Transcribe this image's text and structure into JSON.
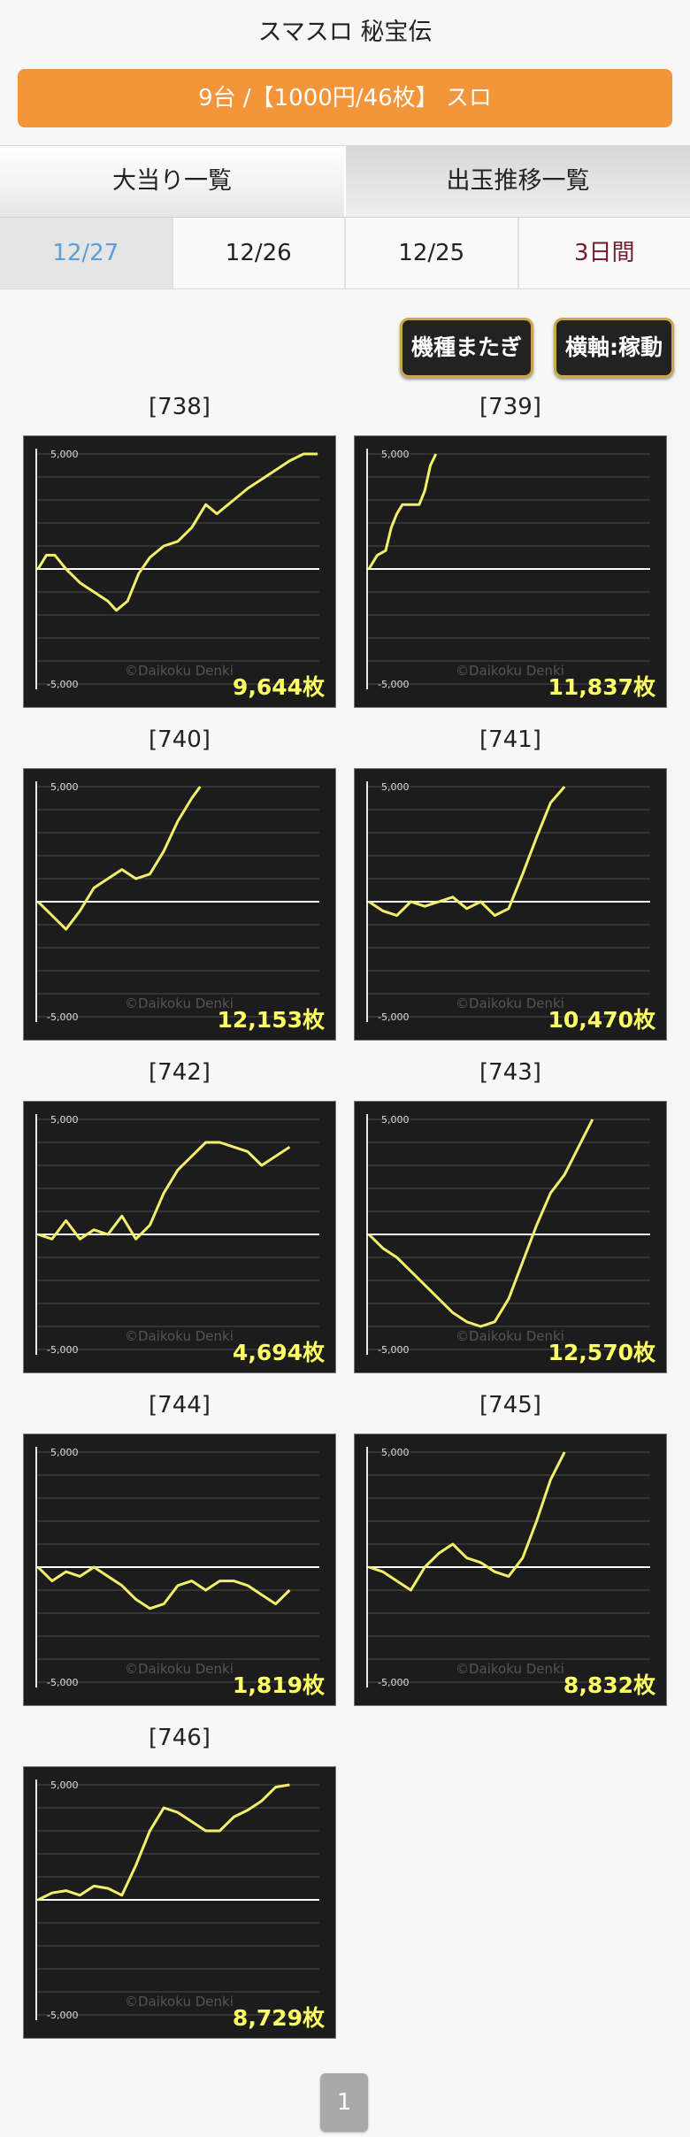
{
  "page": {
    "title": "スマスロ 秘宝伝",
    "machine_info": "9台 /【1000円/46枚】 スロ"
  },
  "main_tabs": [
    {
      "label": "大当り一覧",
      "active": false
    },
    {
      "label": "出玉推移一覧",
      "active": true
    }
  ],
  "date_tabs": [
    {
      "label": "12/27",
      "active": true
    },
    {
      "label": "12/26",
      "active": false
    },
    {
      "label": "12/25",
      "active": false
    },
    {
      "label": "3日間",
      "active": false
    }
  ],
  "options": {
    "machine_span": "機種またぎ",
    "x_axis": "横軸:稼動"
  },
  "chart_common": {
    "ytick_top": "5,000",
    "ytick_bottom": "-5,000",
    "watermark": "©Daikoku Denki",
    "ylim": [
      -5000,
      5000
    ]
  },
  "chart_data": [
    {
      "type": "line",
      "label": "[738]",
      "total": "9,644枚",
      "x": [
        0,
        3,
        6,
        10,
        15,
        20,
        25,
        28,
        32,
        36,
        40,
        45,
        50,
        55,
        60,
        64,
        70,
        75,
        80,
        85,
        90,
        95,
        100
      ],
      "y": [
        0,
        600,
        600,
        0,
        -600,
        -1000,
        -1400,
        -1800,
        -1400,
        -200,
        500,
        1000,
        1200,
        1800,
        2800,
        2400,
        3000,
        3500,
        3900,
        4300,
        4700,
        5000,
        5000
      ]
    },
    {
      "type": "line",
      "label": "[739]",
      "total": "11,837枚",
      "x": [
        0,
        3,
        6,
        8,
        10,
        12,
        15,
        18,
        20,
        22,
        24
      ],
      "y": [
        0,
        600,
        800,
        1800,
        2400,
        2800,
        2800,
        2800,
        3400,
        4500,
        5000
      ]
    },
    {
      "type": "line",
      "label": "[740]",
      "total": "12,153枚",
      "x": [
        0,
        5,
        10,
        15,
        20,
        25,
        30,
        35,
        40,
        45,
        50,
        55,
        58
      ],
      "y": [
        0,
        -600,
        -1200,
        -400,
        600,
        1000,
        1400,
        1000,
        1200,
        2200,
        3500,
        4500,
        5000
      ]
    },
    {
      "type": "line",
      "label": "[741]",
      "total": "10,470枚",
      "x": [
        0,
        5,
        10,
        15,
        20,
        25,
        30,
        35,
        40,
        45,
        50,
        55,
        60,
        65,
        70
      ],
      "y": [
        0,
        -400,
        -600,
        0,
        -200,
        0,
        200,
        -300,
        0,
        -600,
        -300,
        1200,
        2800,
        4300,
        5000
      ]
    },
    {
      "type": "line",
      "label": "[742]",
      "total": "4,694枚",
      "x": [
        0,
        5,
        10,
        15,
        20,
        25,
        30,
        35,
        40,
        45,
        50,
        55,
        60,
        65,
        70,
        75,
        80,
        85,
        90
      ],
      "y": [
        0,
        -200,
        600,
        -200,
        200,
        0,
        800,
        -200,
        400,
        1800,
        2800,
        3400,
        4000,
        4000,
        3800,
        3600,
        3000,
        3400,
        3800
      ]
    },
    {
      "type": "line",
      "label": "[743]",
      "total": "12,570枚",
      "x": [
        0,
        5,
        10,
        15,
        20,
        25,
        30,
        35,
        40,
        45,
        50,
        55,
        60,
        65,
        70,
        75,
        80
      ],
      "y": [
        0,
        -600,
        -1000,
        -1600,
        -2200,
        -2800,
        -3400,
        -3800,
        -4000,
        -3800,
        -2800,
        -1200,
        400,
        1800,
        2600,
        3800,
        5000
      ]
    },
    {
      "type": "line",
      "label": "[744]",
      "total": "1,819枚",
      "x": [
        0,
        5,
        10,
        15,
        20,
        25,
        30,
        35,
        40,
        45,
        50,
        55,
        60,
        65,
        70,
        75,
        80,
        85,
        90
      ],
      "y": [
        0,
        -600,
        -200,
        -400,
        0,
        -400,
        -800,
        -1400,
        -1800,
        -1600,
        -800,
        -600,
        -1000,
        -600,
        -600,
        -800,
        -1200,
        -1600,
        -1000
      ]
    },
    {
      "type": "line",
      "label": "[745]",
      "total": "8,832枚",
      "x": [
        0,
        5,
        10,
        15,
        20,
        25,
        30,
        35,
        40,
        45,
        50,
        55,
        60,
        65,
        70
      ],
      "y": [
        0,
        -200,
        -600,
        -1000,
        0,
        600,
        1000,
        400,
        200,
        -200,
        -400,
        400,
        2000,
        3800,
        5000
      ]
    },
    {
      "type": "line",
      "label": "[746]",
      "total": "8,729枚",
      "x": [
        0,
        5,
        10,
        15,
        20,
        25,
        30,
        35,
        40,
        45,
        50,
        55,
        60,
        65,
        70,
        75,
        80,
        85,
        90
      ],
      "y": [
        0,
        300,
        400,
        200,
        600,
        500,
        200,
        1500,
        3000,
        4000,
        3800,
        3400,
        3000,
        3000,
        3600,
        3900,
        4300,
        4900,
        5000
      ]
    }
  ],
  "pagination": {
    "current": "1"
  }
}
